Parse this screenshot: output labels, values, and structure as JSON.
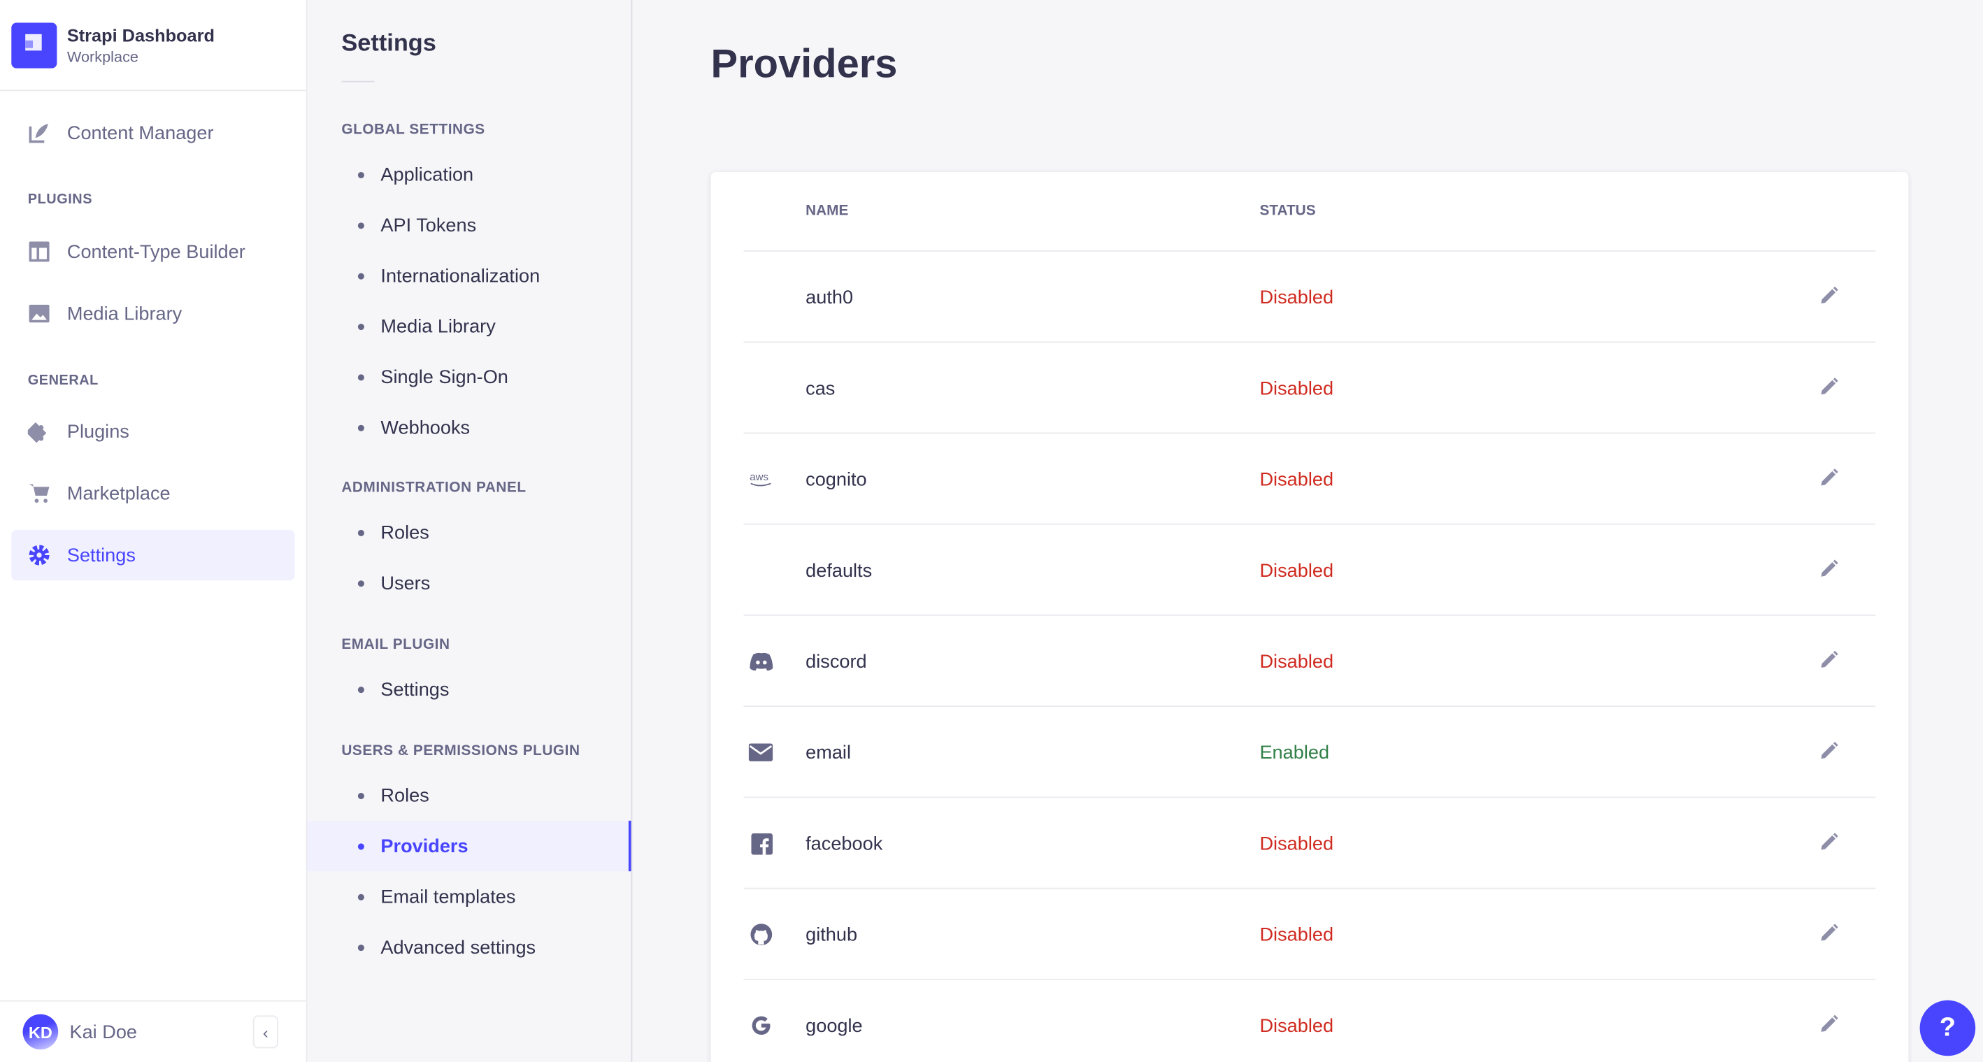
{
  "brand": {
    "title": "Strapi Dashboard",
    "subtitle": "Workplace"
  },
  "nav": {
    "content_manager": "Content Manager",
    "plugins_section": "PLUGINS",
    "ctb": "Content-Type Builder",
    "media": "Media Library",
    "general_section": "GENERAL",
    "plugins": "Plugins",
    "marketplace": "Marketplace",
    "settings": "Settings"
  },
  "user": {
    "initials": "KD",
    "name": "Kai Doe"
  },
  "settings_nav": {
    "title": "Settings",
    "sections": [
      {
        "label": "GLOBAL SETTINGS",
        "items": [
          "Application",
          "API Tokens",
          "Internationalization",
          "Media Library",
          "Single Sign-On",
          "Webhooks"
        ]
      },
      {
        "label": "ADMINISTRATION PANEL",
        "items": [
          "Roles",
          "Users"
        ]
      },
      {
        "label": "EMAIL PLUGIN",
        "items": [
          "Settings"
        ]
      },
      {
        "label": "USERS & PERMISSIONS PLUGIN",
        "items": [
          "Roles",
          "Providers",
          "Email templates",
          "Advanced settings"
        ]
      }
    ],
    "active": "Providers"
  },
  "page": {
    "title": "Providers"
  },
  "table": {
    "headers": {
      "name": "NAME",
      "status": "STATUS"
    },
    "rows": [
      {
        "name": "auth0",
        "status": "Disabled",
        "icon": ""
      },
      {
        "name": "cas",
        "status": "Disabled",
        "icon": ""
      },
      {
        "name": "cognito",
        "status": "Disabled",
        "icon": "aws-icon"
      },
      {
        "name": "defaults",
        "status": "Disabled",
        "icon": ""
      },
      {
        "name": "discord",
        "status": "Disabled",
        "icon": "discord-icon"
      },
      {
        "name": "email",
        "status": "Enabled",
        "icon": "envelope-icon"
      },
      {
        "name": "facebook",
        "status": "Disabled",
        "icon": "facebook-icon"
      },
      {
        "name": "github",
        "status": "Disabled",
        "icon": "github-icon"
      },
      {
        "name": "google",
        "status": "Disabled",
        "icon": "google-icon"
      }
    ]
  },
  "colors": {
    "accent": "#4945ff",
    "disabled": "#d02b20",
    "enabled": "#328048"
  },
  "help": {
    "label": "?"
  }
}
